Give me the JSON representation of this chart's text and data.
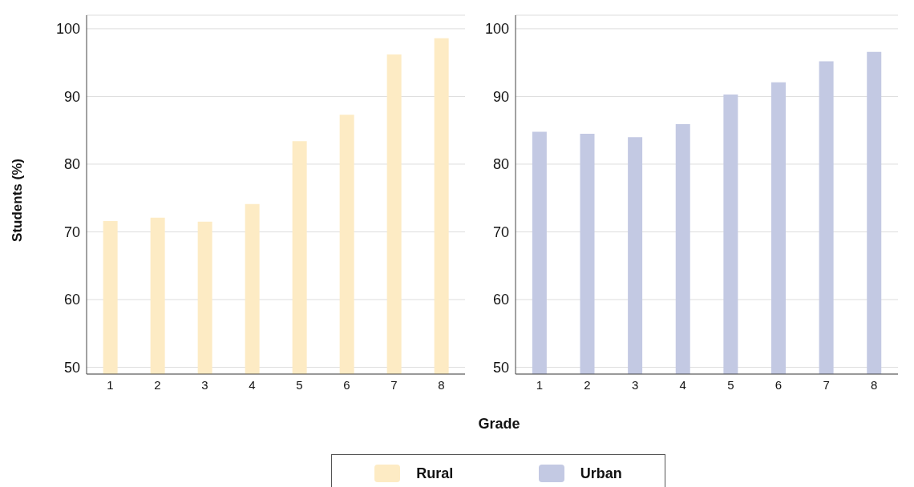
{
  "chart_data": [
    {
      "type": "bar",
      "ylabel": "Students (%)",
      "xlabel": "Grade",
      "categories": [
        "1",
        "2",
        "3",
        "4",
        "5",
        "6",
        "7",
        "8"
      ],
      "series": [
        {
          "name": "Rural",
          "color": "#fdebc4",
          "values": [
            71.6,
            72.1,
            71.5,
            74.1,
            83.4,
            87.3,
            96.2,
            98.6
          ]
        }
      ],
      "ylim": [
        49,
        102
      ],
      "yticks": [
        50,
        60,
        70,
        80,
        90,
        100
      ],
      "grid": "y",
      "legend": "bottom"
    },
    {
      "type": "bar",
      "categories": [
        "1",
        "2",
        "3",
        "4",
        "5",
        "6",
        "7",
        "8"
      ],
      "series": [
        {
          "name": "Urban",
          "color": "#c3c9e3",
          "values": [
            84.8,
            84.5,
            84.0,
            85.9,
            90.3,
            92.1,
            95.2,
            96.6
          ]
        }
      ],
      "ylim": [
        49,
        102
      ],
      "yticks": [
        50,
        60,
        70,
        80,
        90,
        100
      ],
      "grid": "y",
      "legend": "bottom"
    }
  ]
}
